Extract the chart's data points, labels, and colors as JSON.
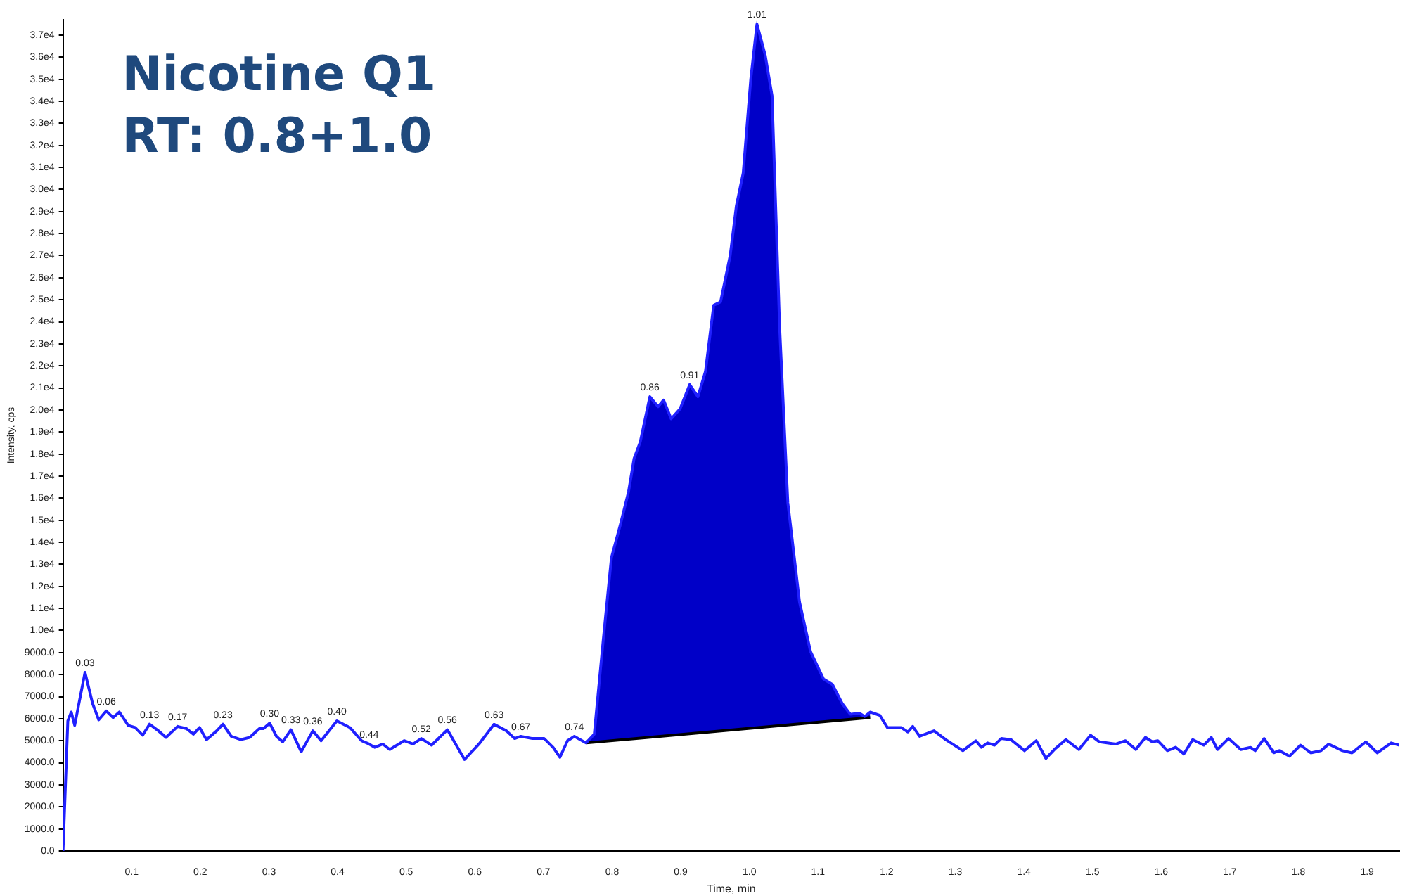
{
  "chart_data": {
    "type": "line",
    "title": "Nicotine Q1",
    "subtitle": "RT: 0.8+1.0",
    "xlabel": "Time, min",
    "ylabel": "Intensity, cps",
    "xlim": [
      0,
      1.947
    ],
    "xticks": [
      0.1,
      0.2,
      0.3,
      0.4,
      0.5,
      0.6,
      0.7,
      0.8,
      0.9,
      {
        "value": 1,
        "label": "1.0"
      },
      1.1,
      1.2,
      1.3,
      1.4,
      1.5,
      1.6,
      1.7,
      1.8,
      1.9
    ],
    "ylim": [
      0,
      37700
    ],
    "yticks": [
      {
        "value": 0,
        "label": "0.0"
      },
      {
        "value": 1000,
        "label": "1000.0"
      },
      {
        "value": 2000,
        "label": "2000.0"
      },
      {
        "value": 3000,
        "label": "3000.0"
      },
      {
        "value": 4000,
        "label": "4000.0"
      },
      {
        "value": 5000,
        "label": "5000.0"
      },
      {
        "value": 6000,
        "label": "6000.0"
      },
      {
        "value": 7000,
        "label": "7000.0"
      },
      {
        "value": 8000,
        "label": "8000.0"
      },
      {
        "value": 9000,
        "label": "9000.0"
      },
      {
        "value": 10000,
        "label": "1.0e4"
      },
      {
        "value": 11000,
        "label": "1.1e4"
      },
      {
        "value": 12000,
        "label": "1.2e4"
      },
      {
        "value": 13000,
        "label": "1.3e4"
      },
      {
        "value": 14000,
        "label": "1.4e4"
      },
      {
        "value": 15000,
        "label": "1.5e4"
      },
      {
        "value": 16000,
        "label": "1.6e4"
      },
      {
        "value": 17000,
        "label": "1.7e4"
      },
      {
        "value": 18000,
        "label": "1.8e4"
      },
      {
        "value": 19000,
        "label": "1.9e4"
      },
      {
        "value": 20000,
        "label": "2.0e4"
      },
      {
        "value": 21000,
        "label": "2.1e4"
      },
      {
        "value": 22000,
        "label": "2.2e4"
      },
      {
        "value": 23000,
        "label": "2.3e4"
      },
      {
        "value": 24000,
        "label": "2.4e4"
      },
      {
        "value": 25000,
        "label": "2.5e4"
      },
      {
        "value": 26000,
        "label": "2.6e4"
      },
      {
        "value": 27000,
        "label": "2.7e4"
      },
      {
        "value": 28000,
        "label": "2.8e4"
      },
      {
        "value": 29000,
        "label": "2.9e4"
      },
      {
        "value": 30000,
        "label": "3.0e4"
      },
      {
        "value": 31000,
        "label": "3.1e4"
      },
      {
        "value": 32000,
        "label": "3.2e4"
      },
      {
        "value": 33000,
        "label": "3.3e4"
      },
      {
        "value": 34000,
        "label": "3.4e4"
      },
      {
        "value": 35000,
        "label": "3.5e4"
      },
      {
        "value": 36000,
        "label": "3.6e4"
      },
      {
        "value": 37000,
        "label": "3.7e4"
      }
    ],
    "grid": false,
    "legend": false,
    "marker": "none",
    "line_style": "solid",
    "series": [
      {
        "color": "#2020ff",
        "x": [
          0,
          0.007,
          0.012,
          0.017,
          0.032,
          0.043,
          0.052,
          0.063,
          0.073,
          0.082,
          0.095,
          0.105,
          0.116,
          0.126,
          0.139,
          0.15,
          0.167,
          0.18,
          0.19,
          0.199,
          0.209,
          0.224,
          0.233,
          0.245,
          0.259,
          0.272,
          0.286,
          0.292,
          0.301,
          0.311,
          0.32,
          0.332,
          0.347,
          0.364,
          0.376,
          0.399,
          0.418,
          0.435,
          0.446,
          0.454,
          0.466,
          0.476,
          0.497,
          0.51,
          0.522,
          0.537,
          0.56,
          0.585,
          0.606,
          0.628,
          0.646,
          0.658,
          0.667,
          0.684,
          0.701,
          0.714,
          0.724,
          0.735,
          0.745,
          0.762,
          0.774,
          0.787,
          0.799,
          0.812,
          0.824,
          0.832,
          0.841,
          0.855,
          0.867,
          0.875,
          0.886,
          0.899,
          0.913,
          0.925,
          0.936,
          0.948,
          0.958,
          0.972,
          0.981,
          0.991,
          1.002,
          1.011,
          1.023,
          1.033,
          1.044,
          1.056,
          1.073,
          1.089,
          1.108,
          1.121,
          1.135,
          1.147,
          1.16,
          1.168,
          1.176,
          1.19,
          1.201,
          1.221,
          1.231,
          1.238,
          1.248,
          1.269,
          1.286,
          1.311,
          1.33,
          1.338,
          1.347,
          1.357,
          1.367,
          1.381,
          1.401,
          1.418,
          1.432,
          1.446,
          1.461,
          1.48,
          1.497,
          1.51,
          1.534,
          1.548,
          1.563,
          1.577,
          1.587,
          1.595,
          1.609,
          1.621,
          1.633,
          1.646,
          1.662,
          1.673,
          1.682,
          1.698,
          1.716,
          1.73,
          1.737,
          1.75,
          1.764,
          1.772,
          1.787,
          1.803,
          1.818,
          1.833,
          1.844,
          1.864,
          1.878,
          1.898,
          1.915,
          1.935,
          1.947
        ],
        "values": [
          0,
          5900,
          6300,
          5700,
          8100,
          6700,
          5950,
          6350,
          6050,
          6300,
          5700,
          5600,
          5250,
          5750,
          5450,
          5150,
          5650,
          5550,
          5300,
          5600,
          5050,
          5450,
          5750,
          5200,
          5050,
          5150,
          5550,
          5550,
          5800,
          5200,
          4950,
          5500,
          4500,
          5450,
          5000,
          5900,
          5600,
          5000,
          4850,
          4700,
          4850,
          4600,
          5000,
          4850,
          5100,
          4800,
          5500,
          4150,
          4850,
          5750,
          5450,
          5100,
          5200,
          5100,
          5100,
          4700,
          4250,
          5000,
          5200,
          4900,
          5300,
          9550,
          13300,
          14800,
          16300,
          17800,
          18550,
          20600,
          20150,
          20450,
          19600,
          20050,
          21150,
          20600,
          21750,
          24750,
          24900,
          27000,
          29250,
          30750,
          35000,
          37500,
          36100,
          34250,
          23800,
          15800,
          11300,
          9050,
          7800,
          7550,
          6700,
          6200,
          6250,
          6100,
          6300,
          6150,
          5600,
          5600,
          5400,
          5650,
          5200,
          5450,
          5050,
          4550,
          5000,
          4700,
          4900,
          4800,
          5100,
          5050,
          4550,
          5000,
          4200,
          4650,
          5050,
          4600,
          5250,
          4950,
          4850,
          5000,
          4600,
          5150,
          4950,
          5000,
          4550,
          4700,
          4400,
          5050,
          4800,
          5150,
          4600,
          5100,
          4600,
          4700,
          4550,
          5100,
          4450,
          4550,
          4300,
          4800,
          4450,
          4550,
          4850,
          4550,
          4450,
          4950,
          4450,
          4900,
          4800
        ]
      },
      {
        "color": "#000000",
        "x": [
          0.762,
          0.85,
          0.95,
          1.05,
          1.176
        ],
        "values": [
          4900,
          5140,
          5420,
          5700,
          6050
        ]
      },
      {
        "type": "area",
        "color": "#0000c8",
        "x": [
          0.762,
          0.774,
          0.787,
          0.799,
          0.812,
          0.824,
          0.832,
          0.841,
          0.855,
          0.867,
          0.875,
          0.886,
          0.899,
          0.913,
          0.925,
          0.936,
          0.948,
          0.958,
          0.972,
          0.981,
          0.991,
          1.002,
          1.011,
          1.023,
          1.033,
          1.044,
          1.056,
          1.073,
          1.089,
          1.108,
          1.121,
          1.135,
          1.147,
          1.16,
          1.168,
          1.176
        ],
        "values": [
          4900,
          5300,
          9550,
          13300,
          14800,
          16300,
          17800,
          18550,
          20600,
          20150,
          20450,
          19600,
          20050,
          21150,
          20600,
          21750,
          24750,
          24900,
          27000,
          29250,
          30750,
          35000,
          37500,
          36100,
          34250,
          23800,
          15800,
          11300,
          9050,
          7800,
          7550,
          6700,
          6200,
          6250,
          6100,
          6300
        ]
      }
    ],
    "annotations": [
      {
        "text": "0.03",
        "x": 0.032,
        "y": 8100
      },
      {
        "text": "0.06",
        "x": 0.063,
        "y": 6350
      },
      {
        "text": "0.13",
        "x": 0.126,
        "y": 5750
      },
      {
        "text": "0.17",
        "x": 0.167,
        "y": 5650
      },
      {
        "text": "0.23",
        "x": 0.233,
        "y": 5750
      },
      {
        "text": "0.30",
        "x": 0.301,
        "y": 5800
      },
      {
        "text": "0.33",
        "x": 0.332,
        "y": 5500
      },
      {
        "text": "0.36",
        "x": 0.364,
        "y": 5450
      },
      {
        "text": "0.40",
        "x": 0.399,
        "y": 5900
      },
      {
        "text": "0.44",
        "x": 0.446,
        "y": 4850
      },
      {
        "text": "0.52",
        "x": 0.522,
        "y": 5100
      },
      {
        "text": "0.56",
        "x": 0.56,
        "y": 5500
      },
      {
        "text": "0.63",
        "x": 0.628,
        "y": 5750
      },
      {
        "text": "0.67",
        "x": 0.667,
        "y": 5200
      },
      {
        "text": "0.74",
        "x": 0.745,
        "y": 5200
      },
      {
        "text": "0.86",
        "x": 0.855,
        "y": 20600
      },
      {
        "text": "0.91",
        "x": 0.913,
        "y": 21150
      },
      {
        "text": "1.01",
        "x": 1.011,
        "y": 37500
      }
    ]
  }
}
